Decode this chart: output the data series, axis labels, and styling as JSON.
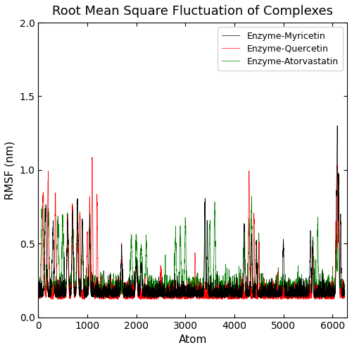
{
  "title": "Root Mean Square Fluctuation of Complexes",
  "xlabel": "Atom",
  "ylabel": "RMSF (nm)",
  "xlim": [
    0,
    6300
  ],
  "ylim": [
    0,
    2
  ],
  "yticks": [
    0,
    0.5,
    1,
    1.5,
    2
  ],
  "xticks": [
    0,
    1000,
    2000,
    3000,
    4000,
    5000,
    6000
  ],
  "legend_labels": [
    "Enzyme-Atorvastatin",
    "Enzyme-Quercetin",
    "Enzyme-Myricetin"
  ],
  "colors": [
    "black",
    "red",
    "green"
  ],
  "line_width": 0.5,
  "title_fontsize": 13,
  "label_fontsize": 11,
  "legend_fontsize": 9,
  "n_points": 6250
}
